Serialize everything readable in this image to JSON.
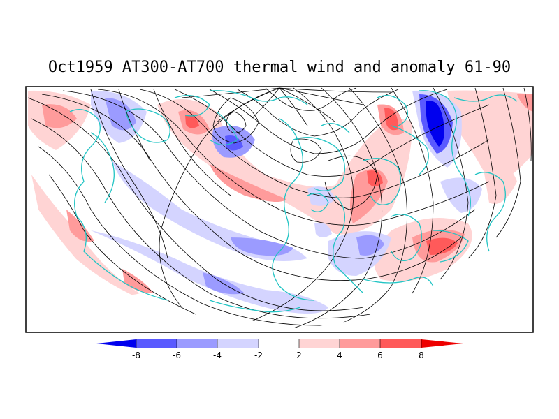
{
  "title": "Oct1959 AT300-AT700 thermal wind and anomaly 61-90",
  "colors": {
    "frame": "#000000",
    "coastline": "#22c4c4",
    "streamline": "#000000",
    "background": "#ffffff"
  },
  "colorbar": {
    "labels": [
      "-8",
      "-6",
      "-4",
      "-2",
      "2",
      "4",
      "6",
      "8"
    ],
    "colors": [
      "#0000ee",
      "#5a5aff",
      "#9b9bff",
      "#d4d4ff",
      "#ffffff",
      "#ffd4d4",
      "#ff9b9b",
      "#ff5a5a",
      "#ee0000"
    ]
  }
}
